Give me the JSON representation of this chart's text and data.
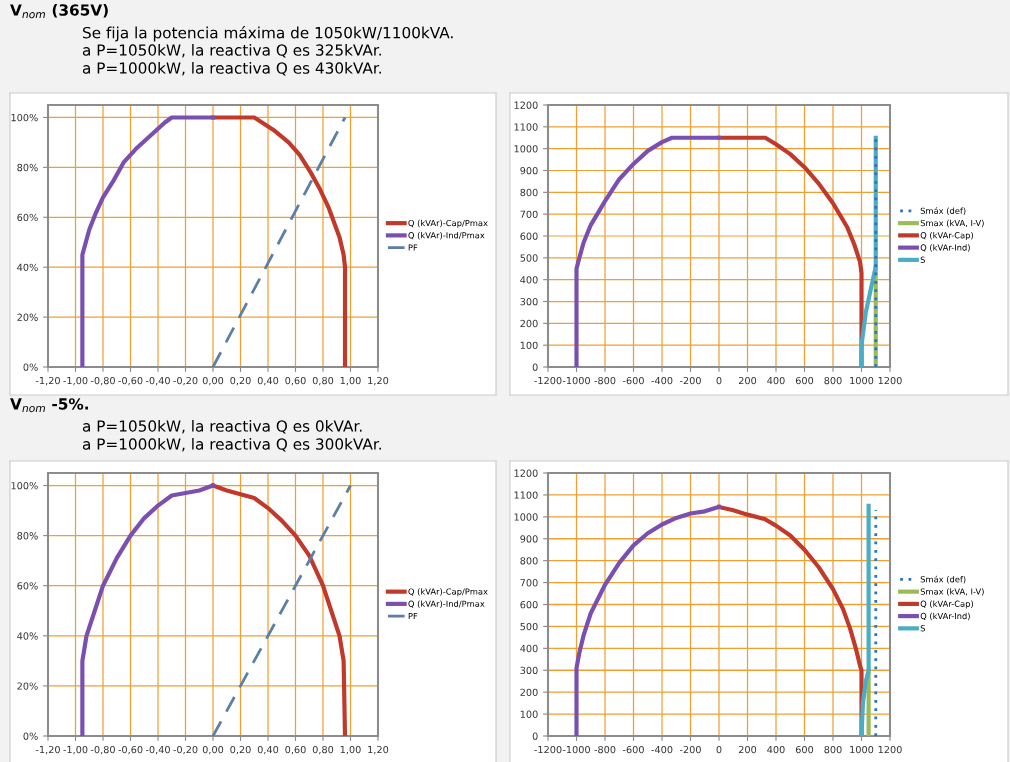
{
  "chart_data": [
    {
      "type": "line",
      "title": "V$_{nom}$ (365V)",
      "annotations": [
        "Se fija la potencia máxima de 1050kW/1100kVA.",
        "a P=1050kW, la reactiva Q es 325kVAr.",
        "a P=1000kW, la reactiva Q es 430kVAr."
      ],
      "xlim": [
        -1.2,
        1.2
      ],
      "ylim": [
        0,
        105
      ],
      "xticks": [
        {
          "value": -1.2,
          "label": "-1,20"
        },
        {
          "value": -1.0,
          "label": "-1,00"
        },
        {
          "value": -0.8,
          "label": "-0,80"
        },
        {
          "value": -0.6,
          "label": "-0,60"
        },
        {
          "value": -0.4,
          "label": "-0,40"
        },
        {
          "value": -0.2,
          "label": "-0,20"
        },
        {
          "value": 0,
          "label": "0,00"
        },
        {
          "value": 0.2,
          "label": "0,20"
        },
        {
          "value": 0.4,
          "label": "0,40"
        },
        {
          "value": 0.6,
          "label": "0,60"
        },
        {
          "value": 0.8,
          "label": "0,80"
        },
        {
          "value": 1.0,
          "label": "1,00"
        },
        {
          "value": 1.2,
          "label": "1,20"
        }
      ],
      "yticks": [
        {
          "value": 0,
          "label": "0%"
        },
        {
          "value": 20,
          "label": "20%"
        },
        {
          "value": 40,
          "label": "40%"
        },
        {
          "value": 60,
          "label": "60%"
        },
        {
          "value": 80,
          "label": "80%"
        },
        {
          "value": 100,
          "label": "100%"
        }
      ],
      "grid": true,
      "legend": "right",
      "series": [
        {
          "name": "Q (kVAr)-Cap/Pmax",
          "color": "#c0392b",
          "line_style": "solid",
          "x": [
            0,
            0.3,
            0.44,
            0.55,
            0.63,
            0.71,
            0.78,
            0.84,
            0.88,
            0.92,
            0.95,
            0.96,
            0.96
          ],
          "values": [
            100,
            100,
            95,
            90,
            85,
            78,
            71,
            64,
            58,
            52,
            45,
            40,
            0
          ]
        },
        {
          "name": "Q (kVAr)-Ind/Pmax",
          "color": "#7a4fb0",
          "line_style": "solid",
          "x": [
            -0.95,
            -0.95,
            -0.9,
            -0.85,
            -0.8,
            -0.72,
            -0.65,
            -0.55,
            -0.45,
            -0.35,
            -0.3,
            0
          ],
          "values": [
            0,
            45,
            55,
            62,
            68,
            75,
            82,
            88,
            93,
            98,
            100,
            100
          ]
        },
        {
          "name": "PF",
          "color": "#5b7fa6",
          "line_style": "dashed",
          "x": [
            0,
            0.96
          ],
          "values": [
            0,
            100
          ]
        }
      ]
    },
    {
      "type": "line",
      "xlim": [
        -1200,
        1200
      ],
      "ylim": [
        0,
        1200
      ],
      "xticks": [
        -1200,
        -1000,
        -800,
        -600,
        -400,
        -200,
        0,
        200,
        400,
        600,
        800,
        1000,
        1200
      ],
      "yticks": [
        0,
        100,
        200,
        300,
        400,
        500,
        600,
        700,
        800,
        900,
        1000,
        1100,
        1200
      ],
      "grid": true,
      "legend": "right",
      "series": [
        {
          "name": "Smáx (def)",
          "color": "#2e75b6",
          "line_style": "dotted",
          "x": [
            1100,
            1100
          ],
          "values": [
            0,
            1050
          ]
        },
        {
          "name": "Smax (kVA, I-V)",
          "color": "#9bbb59",
          "line_style": "solid",
          "x": [
            1100,
            1100
          ],
          "values": [
            0,
            460
          ]
        },
        {
          "name": "Q (kVAr-Cap)",
          "color": "#c0392b",
          "line_style": "solid",
          "x": [
            0,
            325,
            400,
            500,
            600,
            700,
            800,
            900,
            950,
            990,
            1000,
            1000
          ],
          "values": [
            1050,
            1050,
            1020,
            975,
            915,
            840,
            750,
            640,
            560,
            480,
            430,
            0
          ]
        },
        {
          "name": "Q (kVAr-Ind)",
          "color": "#7a4fb0",
          "line_style": "solid",
          "x": [
            -1000,
            -1000,
            -980,
            -950,
            -900,
            -800,
            -700,
            -600,
            -500,
            -400,
            -330,
            0
          ],
          "values": [
            0,
            450,
            500,
            570,
            650,
            760,
            860,
            930,
            990,
            1030,
            1050,
            1050
          ]
        },
        {
          "name": "S",
          "color": "#4bacc6",
          "line_style": "solid",
          "x": [
            1000,
            1000,
            1030,
            1100,
            1100
          ],
          "values": [
            0,
            100,
            250,
            460,
            1050
          ]
        }
      ]
    },
    {
      "type": "line",
      "title": "V$_{nom}$ -5%.",
      "annotations": [
        "a P=1050kW, la reactiva Q es 0kVAr.",
        "a P=1000kW, la reactiva Q es 300kVAr."
      ],
      "xlim": [
        -1.2,
        1.2
      ],
      "ylim": [
        0,
        105
      ],
      "xticks": [
        {
          "value": -1.2,
          "label": "-1,20"
        },
        {
          "value": -1.0,
          "label": "-1,00"
        },
        {
          "value": -0.8,
          "label": "-0,80"
        },
        {
          "value": -0.6,
          "label": "-0,60"
        },
        {
          "value": -0.4,
          "label": "-0,40"
        },
        {
          "value": -0.2,
          "label": "-0,20"
        },
        {
          "value": 0,
          "label": "0,00"
        },
        {
          "value": 0.2,
          "label": "0,20"
        },
        {
          "value": 0.4,
          "label": "0,40"
        },
        {
          "value": 0.6,
          "label": "0,60"
        },
        {
          "value": 0.8,
          "label": "0,80"
        },
        {
          "value": 1.0,
          "label": "1,00"
        },
        {
          "value": 1.2,
          "label": "1,20"
        }
      ],
      "yticks": [
        {
          "value": 0,
          "label": "0%"
        },
        {
          "value": 20,
          "label": "20%"
        },
        {
          "value": 40,
          "label": "40%"
        },
        {
          "value": 60,
          "label": "60%"
        },
        {
          "value": 80,
          "label": "80%"
        },
        {
          "value": 100,
          "label": "100%"
        }
      ],
      "grid": true,
      "legend": "right",
      "series": [
        {
          "name": "Q (kVAr)-Cap/Pmax",
          "color": "#c0392b",
          "line_style": "solid",
          "x": [
            0,
            0.1,
            0.3,
            0.4,
            0.5,
            0.6,
            0.7,
            0.8,
            0.86,
            0.92,
            0.95,
            0.96
          ],
          "values": [
            100,
            98,
            95,
            91,
            86,
            80,
            72,
            60,
            50,
            40,
            30,
            0
          ]
        },
        {
          "name": "Q (kVAr)-Ind/Pmax",
          "color": "#7a4fb0",
          "line_style": "solid",
          "x": [
            -0.95,
            -0.95,
            -0.92,
            -0.86,
            -0.8,
            -0.7,
            -0.6,
            -0.5,
            -0.4,
            -0.3,
            -0.1,
            0
          ],
          "values": [
            0,
            30,
            40,
            50,
            60,
            71,
            80,
            87,
            92,
            96,
            98,
            100
          ]
        },
        {
          "name": "PF",
          "color": "#5b7fa6",
          "line_style": "dashed",
          "x": [
            0,
            1.0
          ],
          "values": [
            0,
            100
          ]
        }
      ]
    },
    {
      "type": "line",
      "xlim": [
        -1200,
        1200
      ],
      "ylim": [
        0,
        1200
      ],
      "xticks": [
        -1200,
        -1000,
        -800,
        -600,
        -400,
        -200,
        0,
        200,
        400,
        600,
        800,
        1000,
        1200
      ],
      "yticks": [
        0,
        100,
        200,
        300,
        400,
        500,
        600,
        700,
        800,
        900,
        1000,
        1100,
        1200
      ],
      "grid": true,
      "legend": "right",
      "series": [
        {
          "name": "Smáx (def)",
          "color": "#2e75b6",
          "line_style": "dotted",
          "x": [
            1100,
            1100
          ],
          "values": [
            0,
            1030
          ]
        },
        {
          "name": "Smax (kVA, I-V)",
          "color": "#9bbb59",
          "line_style": "solid",
          "x": [
            1050,
            1050
          ],
          "values": [
            0,
            300
          ]
        },
        {
          "name": "Q (kVAr-Cap)",
          "color": "#c0392b",
          "line_style": "solid",
          "x": [
            0,
            100,
            200,
            320,
            400,
            500,
            600,
            700,
            800,
            870,
            920,
            960,
            990,
            1000,
            1000
          ],
          "values": [
            1045,
            1030,
            1010,
            990,
            960,
            915,
            850,
            770,
            670,
            580,
            490,
            400,
            320,
            300,
            0
          ]
        },
        {
          "name": "Q (kVAr-Ind)",
          "color": "#7a4fb0",
          "line_style": "solid",
          "x": [
            -1000,
            -1000,
            -980,
            -950,
            -900,
            -800,
            -700,
            -600,
            -500,
            -400,
            -300,
            -200,
            -100,
            0
          ],
          "values": [
            0,
            310,
            380,
            460,
            560,
            690,
            790,
            870,
            925,
            965,
            995,
            1015,
            1025,
            1045
          ]
        },
        {
          "name": "S",
          "color": "#4bacc6",
          "line_style": "solid",
          "x": [
            1000,
            1010,
            1030,
            1050,
            1050
          ],
          "values": [
            0,
            150,
            250,
            300,
            1050
          ]
        }
      ]
    }
  ]
}
